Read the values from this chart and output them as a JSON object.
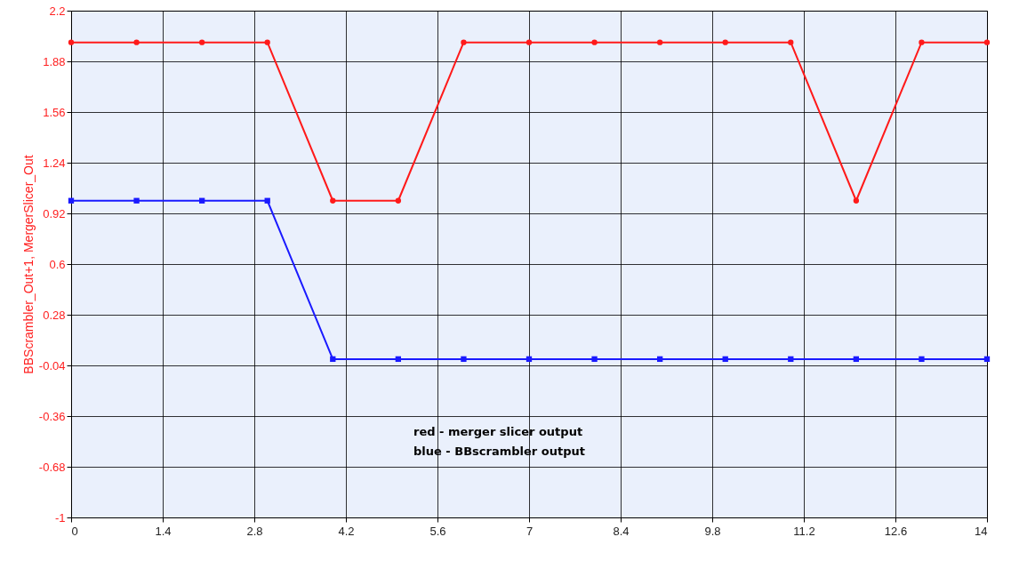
{
  "chart_data": {
    "type": "line",
    "ylabel": "BBScrambler_Out+1, MergerSlicer_Out",
    "x": [
      0,
      1,
      2,
      3,
      4,
      5,
      6,
      7,
      8,
      9,
      10,
      11,
      12,
      13,
      14
    ],
    "series": [
      {
        "color": "#ff1a1a",
        "marker": "circle",
        "values": [
          2,
          2,
          2,
          2,
          1,
          1,
          2,
          2,
          2,
          2,
          2,
          2,
          1,
          2,
          2
        ]
      },
      {
        "color": "#1a1aff",
        "marker": "square",
        "values": [
          1,
          1,
          1,
          1,
          0,
          0,
          0,
          0,
          0,
          0,
          0,
          0,
          0,
          0,
          0
        ]
      }
    ],
    "xlim": [
      0,
      14
    ],
    "xticks": [
      0,
      1.4,
      2.8,
      4.2,
      5.6,
      7,
      8.4,
      9.8,
      11.2,
      12.6,
      14
    ],
    "ylim": [
      -1,
      2.2
    ],
    "yticks": [
      -1,
      -0.68,
      -0.36,
      -0.04,
      0.28,
      0.6,
      0.92,
      1.24,
      1.56,
      1.88,
      2.2
    ],
    "grid": true,
    "line_style": "solid",
    "annotations": [
      "red - merger slicer output",
      "blue - BBscrambler output"
    ]
  }
}
